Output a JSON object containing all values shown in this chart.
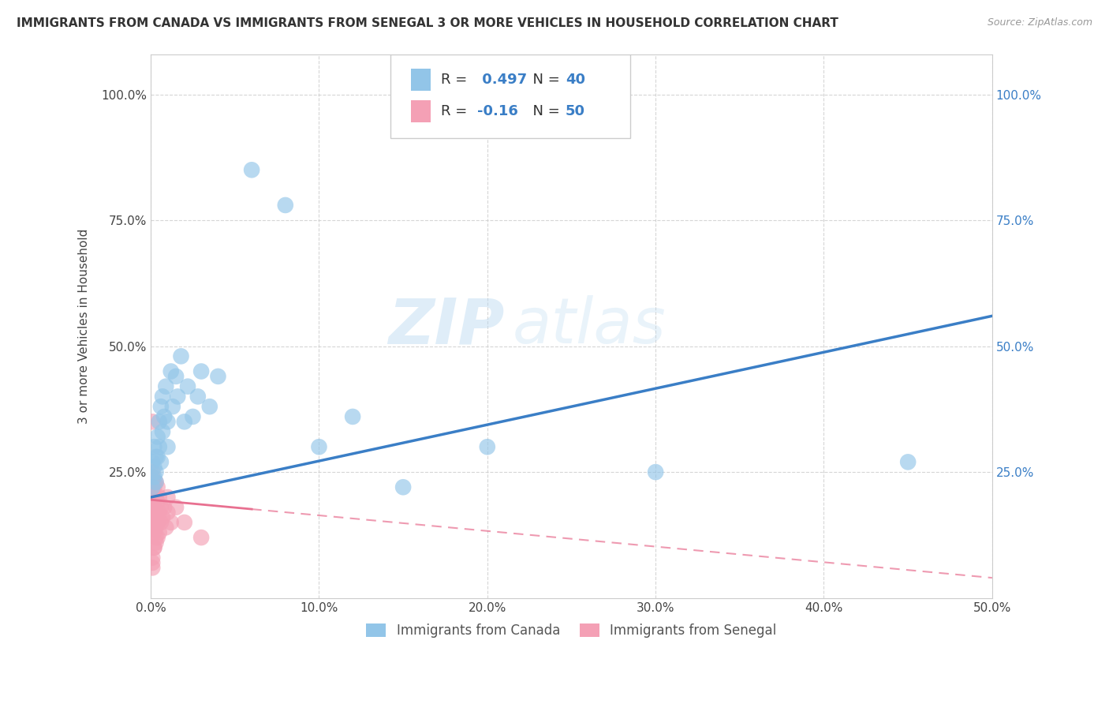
{
  "title": "IMMIGRANTS FROM CANADA VS IMMIGRANTS FROM SENEGAL 3 OR MORE VEHICLES IN HOUSEHOLD CORRELATION CHART",
  "source": "Source: ZipAtlas.com",
  "ylabel": "3 or more Vehicles in Household",
  "xlim": [
    0.0,
    0.5
  ],
  "ylim": [
    0.0,
    1.08
  ],
  "xtick_labels": [
    "0.0%",
    "10.0%",
    "20.0%",
    "30.0%",
    "40.0%",
    "50.0%"
  ],
  "xtick_vals": [
    0.0,
    0.1,
    0.2,
    0.3,
    0.4,
    0.5
  ],
  "ytick_labels": [
    "25.0%",
    "50.0%",
    "75.0%",
    "100.0%"
  ],
  "ytick_vals": [
    0.25,
    0.5,
    0.75,
    1.0
  ],
  "canada_R": 0.497,
  "canada_N": 40,
  "senegal_R": -0.16,
  "senegal_N": 50,
  "canada_color": "#92C5E8",
  "senegal_color": "#F4A0B5",
  "canada_line_color": "#3A7EC6",
  "senegal_line_color": "#E87090",
  "grid_color": "#CCCCCC",
  "watermark": "ZIPatlas",
  "background_color": "#FFFFFF",
  "legend_label_canada": "Immigrants from Canada",
  "legend_label_senegal": "Immigrants from Senegal",
  "canada_scatter_x": [
    0.001,
    0.001,
    0.002,
    0.002,
    0.002,
    0.003,
    0.003,
    0.003,
    0.004,
    0.004,
    0.005,
    0.005,
    0.006,
    0.006,
    0.007,
    0.007,
    0.008,
    0.009,
    0.01,
    0.01,
    0.012,
    0.013,
    0.015,
    0.016,
    0.018,
    0.02,
    0.022,
    0.025,
    0.028,
    0.03,
    0.035,
    0.04,
    0.06,
    0.08,
    0.1,
    0.12,
    0.15,
    0.2,
    0.3,
    0.45
  ],
  "canada_scatter_y": [
    0.22,
    0.27,
    0.24,
    0.3,
    0.26,
    0.28,
    0.23,
    0.25,
    0.32,
    0.28,
    0.35,
    0.3,
    0.38,
    0.27,
    0.4,
    0.33,
    0.36,
    0.42,
    0.3,
    0.35,
    0.45,
    0.38,
    0.44,
    0.4,
    0.48,
    0.35,
    0.42,
    0.36,
    0.4,
    0.45,
    0.38,
    0.44,
    0.85,
    0.78,
    0.3,
    0.36,
    0.22,
    0.3,
    0.25,
    0.27
  ],
  "senegal_scatter_x": [
    0.0003,
    0.0005,
    0.0005,
    0.0008,
    0.001,
    0.001,
    0.001,
    0.001,
    0.001,
    0.001,
    0.001,
    0.002,
    0.002,
    0.002,
    0.002,
    0.002,
    0.002,
    0.002,
    0.003,
    0.003,
    0.003,
    0.003,
    0.003,
    0.004,
    0.004,
    0.004,
    0.005,
    0.005,
    0.005,
    0.006,
    0.006,
    0.007,
    0.008,
    0.009,
    0.01,
    0.01,
    0.012,
    0.015,
    0.02,
    0.03,
    0.003,
    0.002,
    0.001,
    0.001,
    0.002,
    0.002,
    0.001,
    0.001,
    0.003,
    0.004
  ],
  "senegal_scatter_y": [
    0.2,
    0.22,
    0.18,
    0.24,
    0.15,
    0.18,
    0.2,
    0.22,
    0.25,
    0.16,
    0.19,
    0.14,
    0.17,
    0.2,
    0.22,
    0.15,
    0.18,
    0.23,
    0.14,
    0.17,
    0.2,
    0.23,
    0.16,
    0.15,
    0.19,
    0.22,
    0.13,
    0.17,
    0.2,
    0.15,
    0.18,
    0.16,
    0.18,
    0.14,
    0.17,
    0.2,
    0.15,
    0.18,
    0.15,
    0.12,
    0.12,
    0.1,
    0.08,
    0.35,
    0.1,
    0.13,
    0.06,
    0.07,
    0.11,
    0.12
  ],
  "canada_line_x0": 0.0,
  "canada_line_x1": 0.5,
  "canada_line_y0": 0.2,
  "canada_line_y1": 0.56,
  "senegal_line_x0": 0.0,
  "senegal_line_x1": 0.5,
  "senegal_line_y0": 0.195,
  "senegal_line_y1": 0.04
}
